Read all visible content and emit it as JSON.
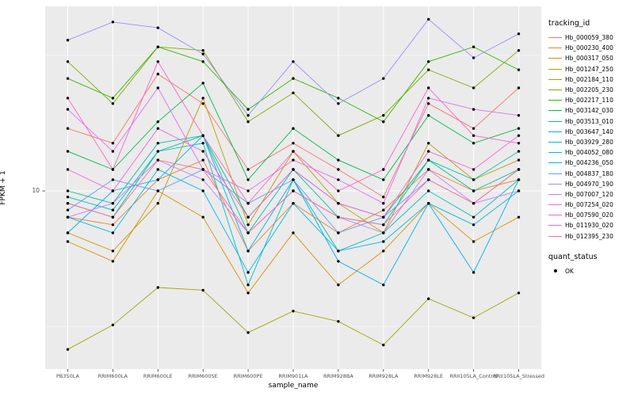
{
  "chart_data": {
    "type": "line",
    "title": "",
    "xlabel": "sample_name",
    "ylabel": "FPKM + 1",
    "y_scale": "log10",
    "ylim": [
      2.2,
      48
    ],
    "y_ticks": [
      10
    ],
    "y_tick_labels": [
      "10"
    ],
    "grid": true,
    "panel_bg": "#EBEBEB",
    "grid_color": "#FFFFFF",
    "point_color": "#000000",
    "categories": [
      "PB350LA",
      "RRIM600LA",
      "RRIM600LE",
      "RRIM600SE",
      "RRIM600PE",
      "RRIM901LA",
      "RRIM928BA",
      "RRIM928LA",
      "RRIM928LE",
      "RRII105LA_Control",
      "RRII105LA_Stressed"
    ],
    "legend": {
      "color_title": "tracking_id",
      "shape_title": "quant_status",
      "shape_items": [
        "OK"
      ],
      "position": "right"
    },
    "series": [
      {
        "name": "Hb_000059_380",
        "color": "#F8766D",
        "values": [
          17,
          15,
          27,
          21,
          12,
          15,
          12,
          9.5,
          21,
          17,
          24
        ]
      },
      {
        "name": "Hb_000230_400",
        "color": "#EA8331",
        "values": [
          8,
          7.5,
          11,
          13,
          6,
          9,
          7,
          8.5,
          12,
          10,
          11
        ]
      },
      {
        "name": "Hb_000317_050",
        "color": "#D89000",
        "values": [
          6.5,
          5.5,
          10,
          8,
          4.2,
          7,
          4.5,
          6,
          9,
          6.5,
          8
        ]
      },
      {
        "name": "Hb_001247_250",
        "color": "#C09B00",
        "values": [
          7,
          6,
          9,
          22,
          7.5,
          14,
          9,
          7,
          15,
          11,
          13
        ]
      },
      {
        "name": "Hb_002184_110",
        "color": "#A3A500",
        "values": [
          2.6,
          3.2,
          4.4,
          4.3,
          3.0,
          3.6,
          3.3,
          2.7,
          4.0,
          3.4,
          4.2
        ]
      },
      {
        "name": "Hb_002205_230",
        "color": "#7CAE00",
        "values": [
          30,
          21,
          34,
          33,
          18,
          23,
          16,
          19,
          28,
          24,
          33
        ]
      },
      {
        "name": "Hb_002217_110",
        "color": "#39B600",
        "values": [
          26,
          22,
          34,
          30,
          20,
          26,
          22,
          18,
          30,
          34,
          28
        ]
      },
      {
        "name": "Hb_003142_030",
        "color": "#00BB4E",
        "values": [
          14,
          12,
          18,
          25,
          11,
          17,
          13,
          11,
          19,
          15,
          17
        ]
      },
      {
        "name": "Hb_003513_010",
        "color": "#00C087",
        "values": [
          9,
          8,
          14,
          16,
          8,
          12,
          9,
          8,
          13,
          10,
          12
        ]
      },
      {
        "name": "Hb_003647_140",
        "color": "#00C0AF",
        "values": [
          10,
          9,
          15,
          16,
          7,
          12,
          8,
          7.5,
          13,
          11,
          14
        ]
      },
      {
        "name": "Hb_003929_280",
        "color": "#00BFC4",
        "values": [
          9.5,
          8.5,
          14,
          15,
          4.5,
          11,
          6,
          7,
          10,
          8,
          11
        ]
      },
      {
        "name": "Hb_004052_080",
        "color": "#00B8E7",
        "values": [
          8,
          7,
          12,
          10,
          5,
          9,
          6,
          6.5,
          9,
          7.5,
          10
        ]
      },
      {
        "name": "Hb_004236_050",
        "color": "#00ACFC",
        "values": [
          7,
          10,
          11,
          16,
          6,
          11,
          5.5,
          4.5,
          9,
          5,
          11
        ]
      },
      {
        "name": "Hb_004837_180",
        "color": "#619CFF",
        "values": [
          8.5,
          11,
          10,
          12,
          9,
          11,
          7,
          8,
          11,
          9,
          12
        ]
      },
      {
        "name": "Hb_004970_190",
        "color": "#9590FF",
        "values": [
          36,
          42,
          40,
          32,
          19,
          30,
          21,
          26,
          43,
          31,
          38
        ]
      },
      {
        "name": "Hb_007007_120",
        "color": "#C77CFF",
        "values": [
          8,
          9,
          13,
          11,
          7,
          10,
          8,
          7,
          12,
          9,
          10
        ]
      },
      {
        "name": "Hb_007254_020",
        "color": "#E76BF3",
        "values": [
          20,
          14,
          24,
          12,
          10,
          13,
          11,
          9,
          22,
          20,
          19
        ]
      },
      {
        "name": "Hb_007590_020",
        "color": "#FA62DB",
        "values": [
          12,
          10,
          17,
          14,
          8,
          12,
          9,
          8,
          14,
          12,
          16
        ]
      },
      {
        "name": "Hb_011930_020",
        "color": "#FF61C9",
        "values": [
          22,
          12,
          30,
          16,
          9,
          14,
          10,
          12,
          24,
          16,
          15
        ]
      },
      {
        "name": "Hb_012395_230",
        "color": "#FF6A98",
        "values": [
          9,
          8,
          13,
          12,
          7,
          10,
          8,
          7.5,
          11,
          9,
          12
        ]
      }
    ]
  }
}
